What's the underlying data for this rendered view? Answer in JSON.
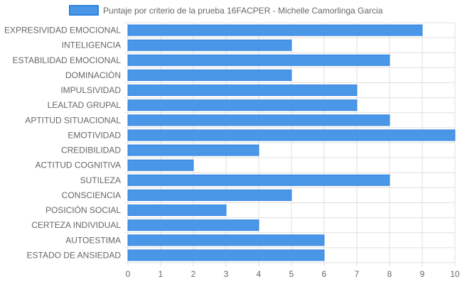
{
  "chart_data": {
    "type": "bar",
    "orientation": "horizontal",
    "categories": [
      "EXPRESIVIDAD EMOCIONAL",
      "INTELIGENCIA",
      "ESTABILIDAD EMOCIONAL",
      "DOMINACIÓN",
      "IMPULSIVIDAD",
      "LEALTAD GRUPAL",
      "APTITUD SITUACIONAL",
      "EMOTIVIDAD",
      "CREDIBILIDAD",
      "ACTITUD COGNITIVA",
      "SUTILEZA",
      "CONSCIENCIA",
      "POSICIÓN SOCIAL",
      "CERTEZA INDIVIDUAL",
      "AUTOESTIMA",
      "ESTADO DE ANSIEDAD"
    ],
    "series": [
      {
        "name": "Puntaje por criterio de la prueba 16FACPER - Michelle Camorlinga Garcia",
        "values": [
          9,
          5,
          8,
          5,
          7,
          7,
          8,
          10,
          4,
          2,
          8,
          5,
          3,
          4,
          6,
          6
        ]
      }
    ],
    "xlim": [
      0,
      10
    ],
    "xticks": [
      "0",
      "1",
      "2",
      "3",
      "4",
      "5",
      "6",
      "7",
      "8",
      "9",
      "10"
    ],
    "grid": true,
    "legend_position": "top",
    "colors": {
      "bar_fill": "#4a97e8",
      "bar_border": "#2f80e0",
      "grid": "#e0e0e0",
      "text": "#666666"
    }
  }
}
